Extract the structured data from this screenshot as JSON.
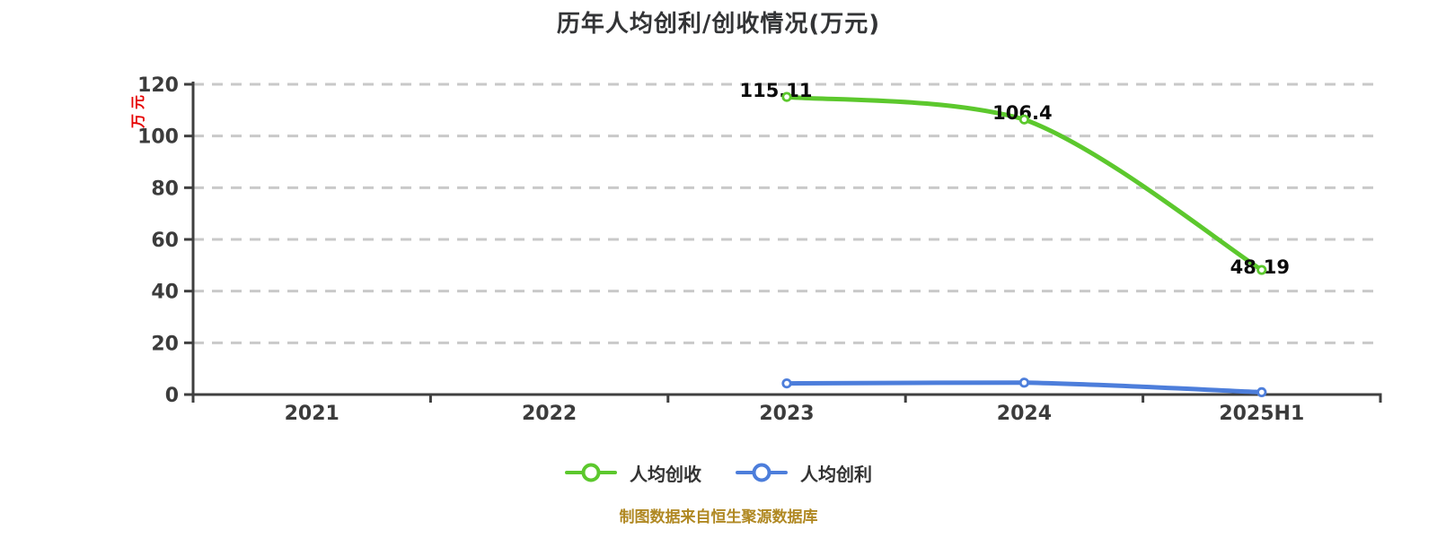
{
  "title": {
    "text": "历年人均创利/创收情况(万元)"
  },
  "y_axis": {
    "unit_label": "万元",
    "unit_color": "#e60000"
  },
  "footer": {
    "text": "制图数据来自恒生聚源数据库",
    "color": "#b08822"
  },
  "legend": {
    "position": "bottom",
    "items": [
      {
        "label": "人均创收",
        "color": "#5cc82d"
      },
      {
        "label": "人均创利",
        "color": "#4d7edb"
      }
    ]
  },
  "colors": {
    "green_series": "#5cc82d",
    "blue_series": "#4d7edb",
    "axis": "#3f3f3f",
    "grid": "#c9c9c9",
    "tick_text": "#3c3c3c",
    "data_label": "#0b0b0b",
    "title_text": "#333436"
  },
  "chart_data": {
    "type": "line",
    "title": "历年人均创利/创收情况(万元)",
    "xlabel": "",
    "ylabel": "万元",
    "ylim": [
      0,
      120
    ],
    "y_ticks": [
      0,
      20,
      40,
      60,
      80,
      100,
      120
    ],
    "grid": true,
    "legend_position": "bottom",
    "categories": [
      "2021",
      "2022",
      "2023",
      "2024",
      "2025H1"
    ],
    "series": [
      {
        "name": "人均创收",
        "color": "#5cc82d",
        "values": [
          null,
          null,
          115.11,
          106.4,
          48.19
        ],
        "labels": [
          null,
          null,
          "115.11",
          "106.4",
          "48.19"
        ]
      },
      {
        "name": "人均创利",
        "color": "#4d7edb",
        "values": [
          null,
          null,
          4.3,
          4.6,
          0.9
        ],
        "labels": [
          null,
          null,
          null,
          null,
          null
        ]
      }
    ]
  }
}
